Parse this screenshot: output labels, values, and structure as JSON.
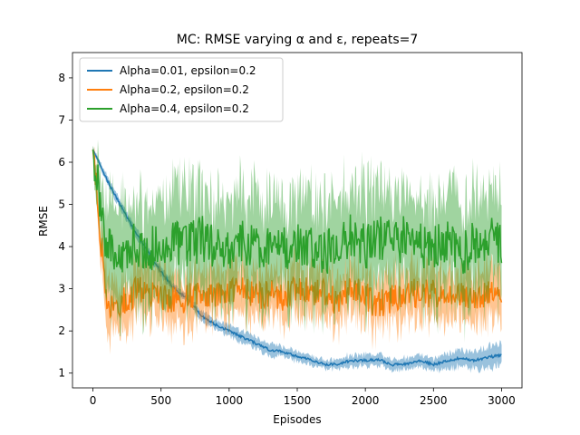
{
  "chart_data": {
    "type": "line",
    "title": "MC: RMSE varying α and ε, repeats=7",
    "xlabel": "Episodes",
    "ylabel": "RMSE",
    "xlim": [
      -150,
      3150
    ],
    "ylim": [
      0.65,
      8.6
    ],
    "xticks": [
      0,
      500,
      1000,
      1500,
      2000,
      2500,
      3000
    ],
    "yticks": [
      1,
      2,
      3,
      4,
      5,
      6,
      7,
      8
    ],
    "grid": false,
    "legend_position": "top-left",
    "series": [
      {
        "name": "Alpha=0.01, epsilon=0.2",
        "color": "#1f77b4",
        "x": [
          0,
          100,
          200,
          300,
          400,
          500,
          600,
          700,
          800,
          900,
          1000,
          1100,
          1200,
          1300,
          1400,
          1500,
          1600,
          1700,
          1800,
          1900,
          2000,
          2100,
          2200,
          2300,
          2400,
          2500,
          2600,
          2700,
          2800,
          2900,
          3000
        ],
        "mean": [
          6.3,
          5.6,
          5.0,
          4.4,
          3.9,
          3.4,
          3.0,
          2.75,
          2.35,
          2.15,
          2.0,
          1.85,
          1.7,
          1.55,
          1.5,
          1.4,
          1.32,
          1.2,
          1.22,
          1.3,
          1.3,
          1.32,
          1.2,
          1.22,
          1.3,
          1.2,
          1.3,
          1.35,
          1.3,
          1.38,
          1.42
        ],
        "spread": [
          0.05,
          0.1,
          0.12,
          0.12,
          0.1,
          0.12,
          0.12,
          0.1,
          0.12,
          0.12,
          0.14,
          0.15,
          0.15,
          0.15,
          0.12,
          0.12,
          0.12,
          0.1,
          0.12,
          0.15,
          0.14,
          0.15,
          0.14,
          0.15,
          0.15,
          0.15,
          0.2,
          0.2,
          0.22,
          0.25,
          0.28
        ]
      },
      {
        "name": "Alpha=0.2, epsilon=0.2",
        "color": "#ff7f0e",
        "x": [
          0,
          100,
          200,
          300,
          400,
          500,
          600,
          700,
          800,
          900,
          1000,
          1100,
          1200,
          1300,
          1400,
          1500,
          1600,
          1700,
          1800,
          1900,
          2000,
          2100,
          2200,
          2300,
          2400,
          2500,
          2600,
          2700,
          2800,
          2900,
          3000
        ],
        "mean": [
          6.3,
          2.6,
          2.6,
          2.9,
          3.0,
          2.8,
          2.7,
          2.8,
          2.9,
          2.8,
          2.9,
          3.0,
          2.8,
          2.9,
          2.8,
          3.0,
          2.9,
          2.9,
          2.7,
          3.0,
          2.8,
          2.6,
          2.8,
          2.9,
          2.9,
          2.9,
          2.8,
          2.8,
          2.8,
          2.9,
          2.7
        ],
        "spread": [
          0.1,
          0.7,
          0.6,
          0.6,
          0.6,
          0.6,
          0.6,
          0.6,
          0.6,
          0.6,
          0.6,
          0.6,
          0.6,
          0.6,
          0.6,
          0.6,
          0.6,
          0.6,
          0.6,
          0.6,
          0.6,
          0.6,
          0.6,
          0.6,
          0.6,
          0.6,
          0.6,
          0.6,
          0.6,
          0.6,
          0.6
        ]
      },
      {
        "name": "Alpha=0.4, epsilon=0.2",
        "color": "#2ca02c",
        "x": [
          0,
          100,
          200,
          300,
          400,
          500,
          600,
          700,
          800,
          900,
          1000,
          1100,
          1200,
          1300,
          1400,
          1500,
          1600,
          1700,
          1800,
          1900,
          2000,
          2100,
          2200,
          2300,
          2400,
          2500,
          2600,
          2700,
          2800,
          2900,
          3000
        ],
        "mean": [
          6.3,
          3.9,
          3.8,
          4.0,
          4.0,
          3.9,
          4.1,
          4.0,
          4.2,
          4.0,
          4.0,
          4.1,
          4.0,
          3.9,
          4.0,
          4.0,
          4.1,
          3.8,
          4.1,
          4.3,
          4.0,
          4.2,
          4.1,
          4.2,
          4.0,
          4.0,
          4.2,
          3.8,
          4.1,
          4.2,
          4.1
        ],
        "spread": [
          0.1,
          1.2,
          1.2,
          1.2,
          1.2,
          1.2,
          1.2,
          1.2,
          1.2,
          1.2,
          1.2,
          1.2,
          1.2,
          1.2,
          1.2,
          1.2,
          1.2,
          1.2,
          1.2,
          1.2,
          1.4,
          1.2,
          1.2,
          1.2,
          1.2,
          1.2,
          1.2,
          1.2,
          1.2,
          1.2,
          1.2
        ]
      }
    ]
  }
}
